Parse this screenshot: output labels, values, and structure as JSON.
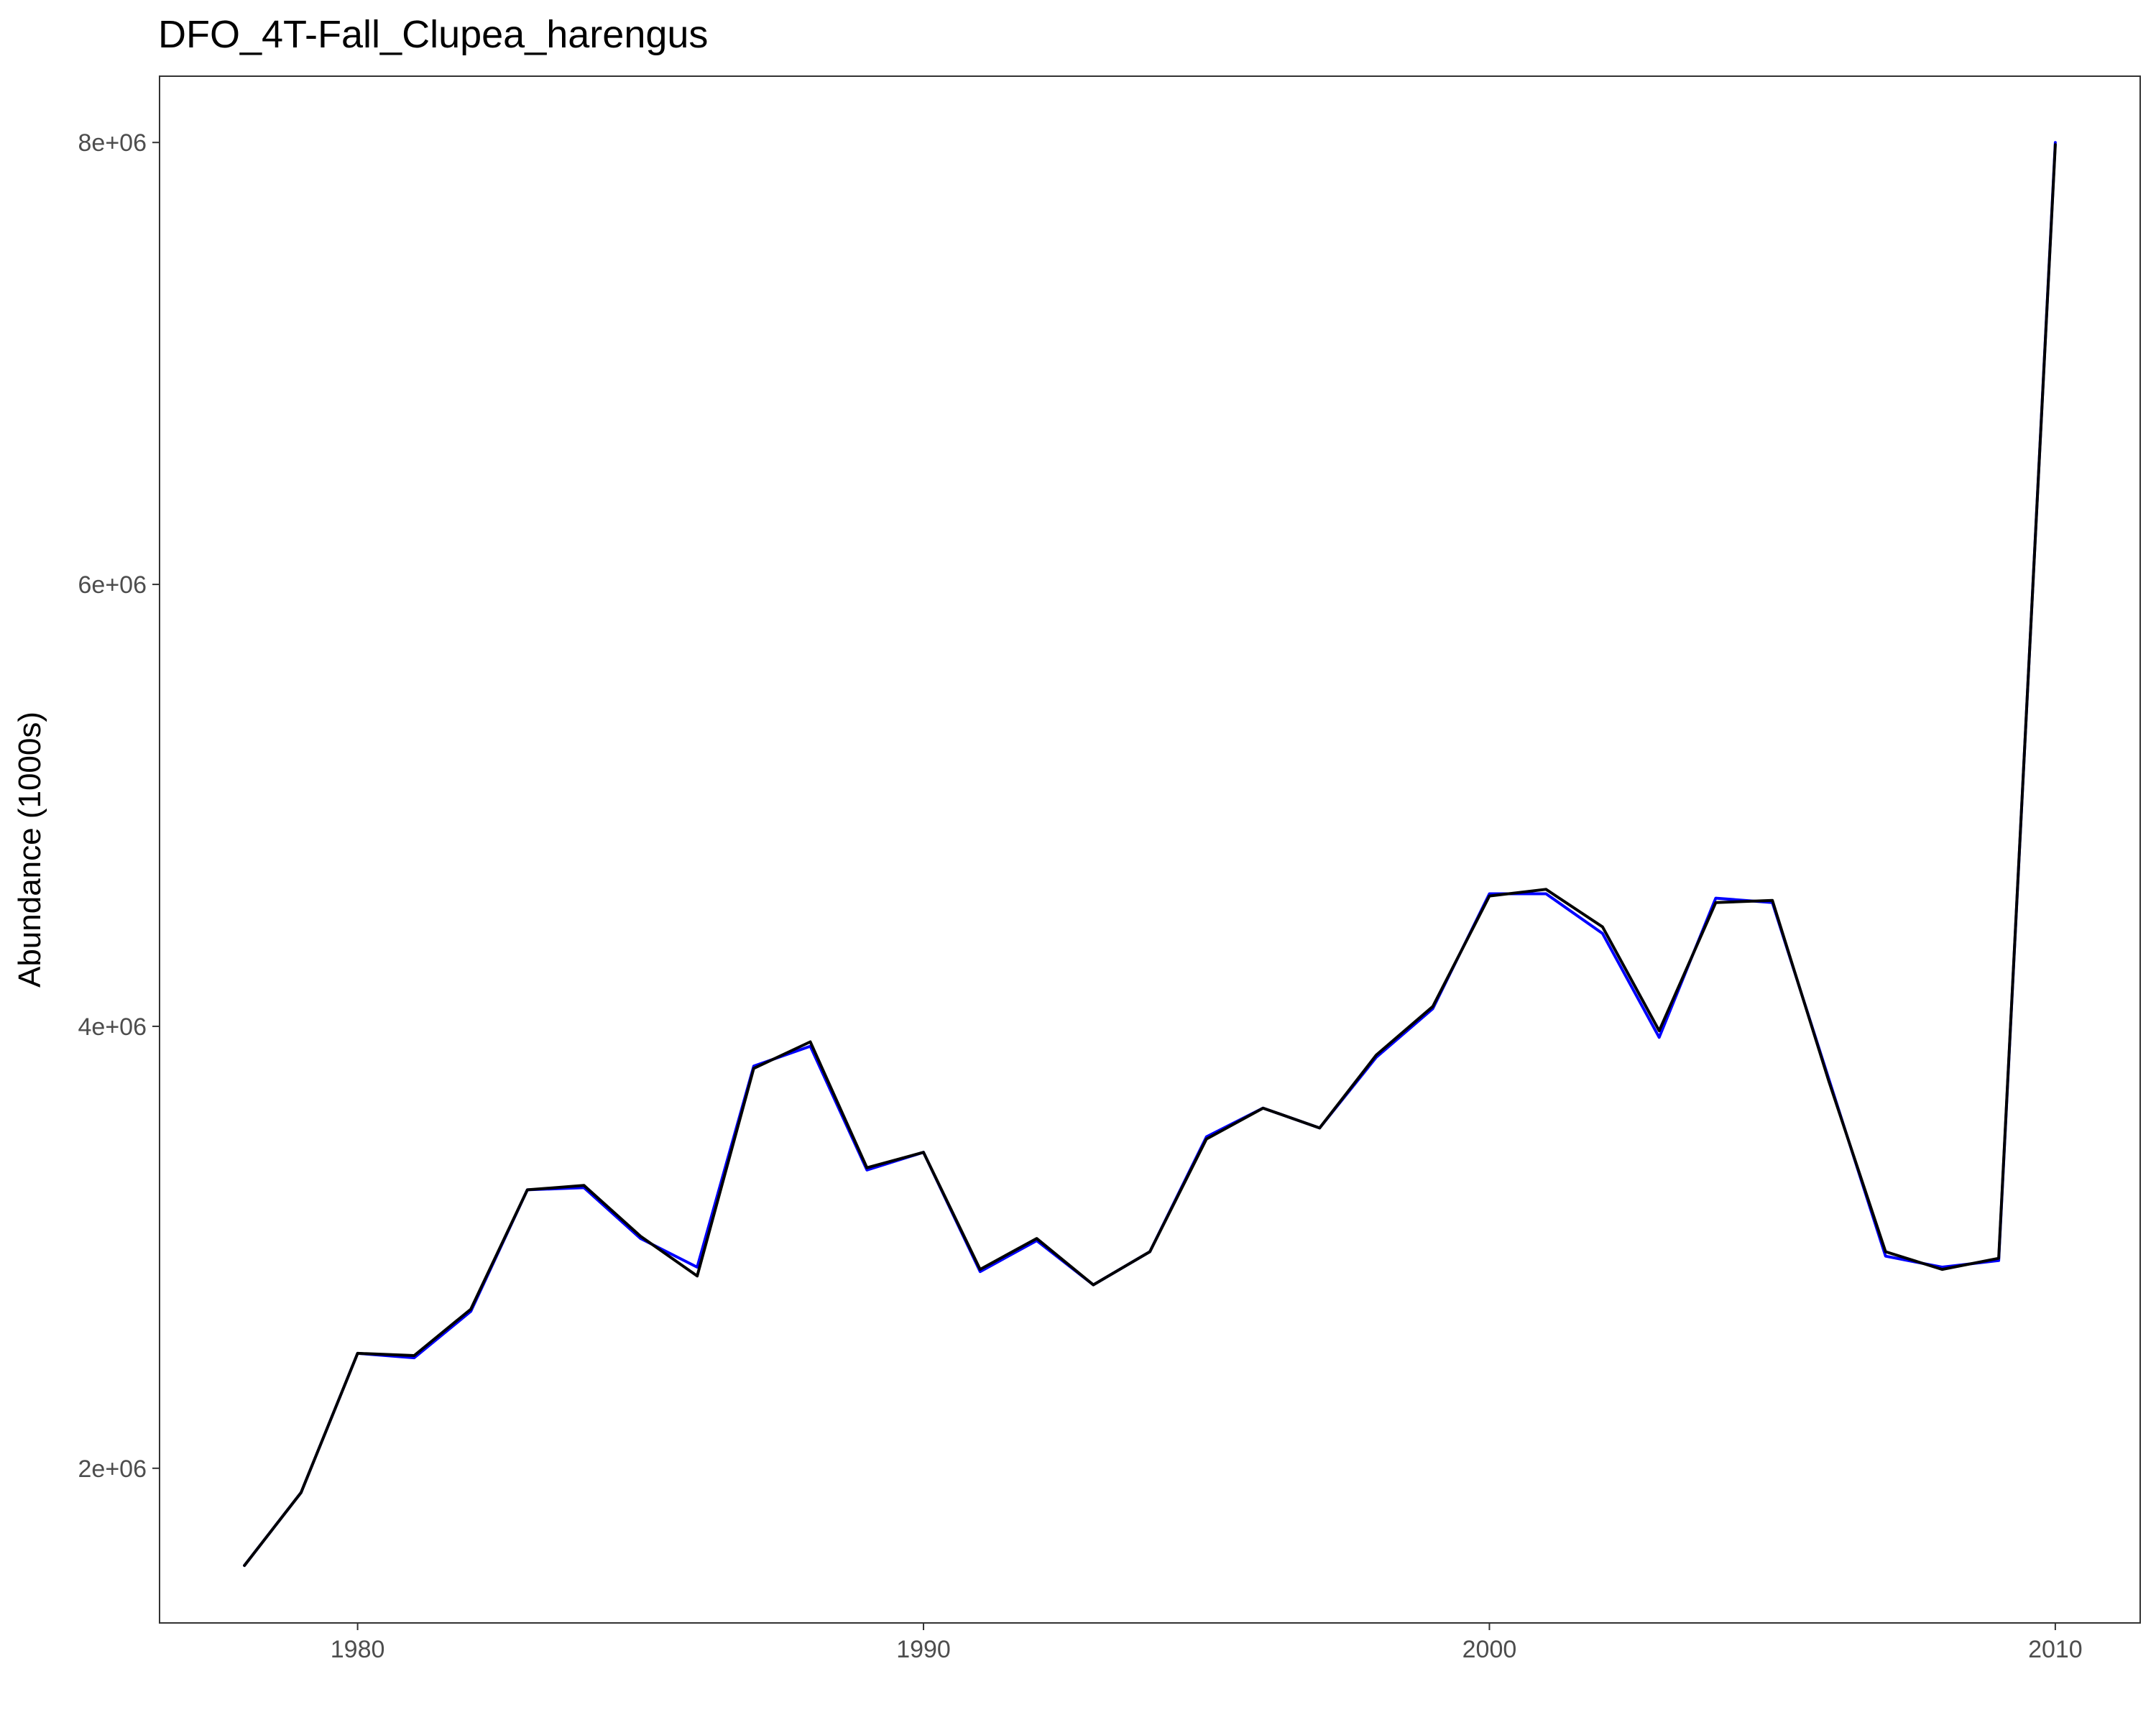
{
  "chart_data": {
    "type": "line",
    "title": "DFO_4T-Fall_Clupea_harengus",
    "xlabel": "",
    "ylabel": "Abundance (1000s)",
    "xlim": [
      1976.5,
      2011.5
    ],
    "ylim": [
      1300000,
      8300000
    ],
    "x_ticks": [
      1980,
      1990,
      2000,
      2010
    ],
    "x_tick_labels": [
      "1980",
      "1990",
      "2000",
      "2010"
    ],
    "y_ticks": [
      2000000,
      4000000,
      6000000,
      8000000
    ],
    "y_tick_labels": [
      "2e+06",
      "4e+06",
      "6e+06",
      "8e+06"
    ],
    "grid": false,
    "series": [
      {
        "color": "#0000ff",
        "x": [
          1978,
          1979,
          1980,
          1981,
          1982,
          1983,
          1984,
          1985,
          1986,
          1987,
          1988,
          1989,
          1990,
          1991,
          1992,
          1993,
          1994,
          1995,
          1996,
          1997,
          1998,
          1999,
          2000,
          2001,
          2002,
          2003,
          2004,
          2005,
          2006,
          2007,
          2008,
          2009,
          2010
        ],
        "y": [
          1560000,
          1890000,
          2520000,
          2500000,
          2710000,
          3260000,
          3270000,
          3040000,
          2910000,
          3820000,
          3910000,
          3350000,
          3430000,
          2890000,
          3030000,
          2830000,
          2980000,
          3500000,
          3630000,
          3540000,
          3860000,
          4080000,
          4600000,
          4600000,
          4420000,
          3950000,
          4580000,
          4560000,
          3760000,
          2960000,
          2910000,
          2940000,
          8000000
        ]
      },
      {
        "color": "#000000",
        "x": [
          1978,
          1979,
          1980,
          1981,
          1982,
          1983,
          1984,
          1985,
          1986,
          1987,
          1988,
          1989,
          1990,
          1991,
          1992,
          1993,
          1994,
          1995,
          1996,
          1997,
          1998,
          1999,
          2000,
          2001,
          2002,
          2003,
          2004,
          2005,
          2006,
          2007,
          2008,
          2009,
          2010
        ],
        "y": [
          1560000,
          1890000,
          2520000,
          2510000,
          2720000,
          3260000,
          3280000,
          3050000,
          2870000,
          3810000,
          3930000,
          3360000,
          3430000,
          2900000,
          3040000,
          2830000,
          2980000,
          3490000,
          3630000,
          3540000,
          3870000,
          4090000,
          4590000,
          4620000,
          4450000,
          3980000,
          4560000,
          4570000,
          3750000,
          2980000,
          2900000,
          2950000,
          7990000
        ]
      }
    ]
  }
}
